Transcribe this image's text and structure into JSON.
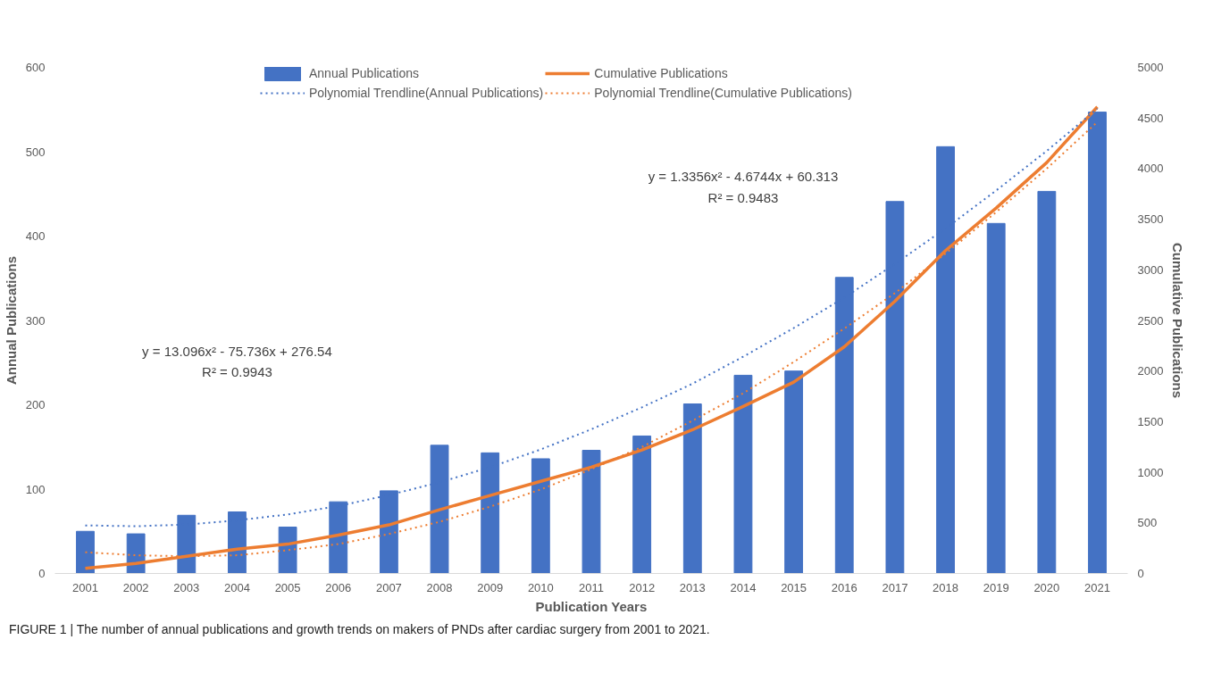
{
  "chart_data": {
    "type": "bar",
    "categories": [
      "2001",
      "2002",
      "2003",
      "2004",
      "2005",
      "2006",
      "2007",
      "2008",
      "2009",
      "2010",
      "2011",
      "2012",
      "2013",
      "2014",
      "2015",
      "2016",
      "2017",
      "2018",
      "2019",
      "2020",
      "2021"
    ],
    "series": [
      {
        "name": "Annual Publications",
        "color": "#4472c4",
        "values": [
          50,
          47,
          69,
          73,
          55,
          85,
          98,
          152,
          143,
          136,
          146,
          163,
          201,
          235,
          240,
          351,
          441,
          506,
          415,
          453,
          547
        ]
      },
      {
        "name": "Cumulative Publications",
        "type": "line",
        "axis": "y2",
        "color": "#ed7d31",
        "values": [
          50,
          100,
          170,
          240,
          290,
          380,
          480,
          630,
          770,
          910,
          1050,
          1220,
          1420,
          1650,
          1890,
          2240,
          2690,
          3190,
          3610,
          4060,
          4610
        ]
      },
      {
        "name": "Polynomial Trendline(Annual Publications)",
        "type": "line",
        "line_style": "dotted",
        "color": "#4472c4",
        "values": [
          57,
          56,
          58,
          63,
          70,
          80,
          93,
          108,
          126,
          147,
          171,
          197,
          225,
          257,
          291,
          327,
          367,
          409,
          454,
          501,
          551
        ]
      },
      {
        "name": "Polynomial Trendline(Cumulative Publications)",
        "type": "line",
        "line_style": "dotted",
        "axis": "y2",
        "color": "#ed7d31",
        "values": [
          210,
          180,
          170,
          180,
          230,
          290,
          390,
          510,
          660,
          830,
          1030,
          1250,
          1510,
          1780,
          2090,
          2420,
          2770,
          3160,
          3570,
          4000,
          4460
        ]
      }
    ],
    "xlabel": "Publication Years",
    "ylabel": "Annual Publications",
    "y2label": "Cumulative Publications",
    "ylim": [
      0,
      600
    ],
    "yticks": [
      0,
      100,
      200,
      300,
      400,
      500,
      600
    ],
    "y2lim": [
      0,
      5000
    ],
    "y2ticks": [
      0,
      500,
      1000,
      1500,
      2000,
      2500,
      3000,
      3500,
      4000,
      4500,
      5000
    ],
    "grid": false,
    "legend": "top",
    "annotations": [
      "y = 1.3356x² - 4.6744x + 60.313",
      "R² = 0.9483",
      "y = 13.096x² - 75.736x + 276.54",
      "R² = 0.9943",
      "FIGURE 1 | The number of annual publications and growth trends on makers of PNDs after cardiac surgery from 2001 to 2021."
    ]
  }
}
